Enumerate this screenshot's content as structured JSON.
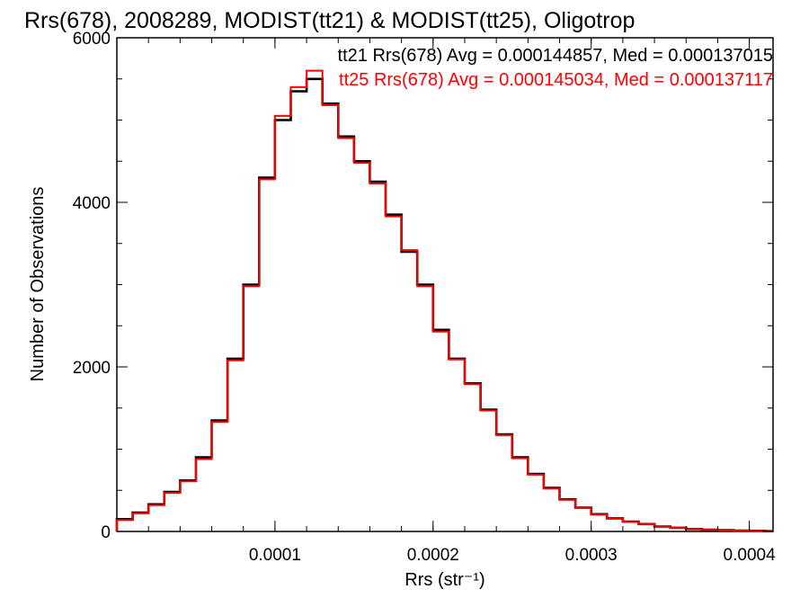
{
  "chart_data": {
    "type": "histogram-step",
    "title": "Rrs(678), 2008289, MODIST(tt21) & MODIST(tt25), Oligotrop",
    "xlabel": "Rrs (str⁻¹)",
    "ylabel": "Number of Observations",
    "xlim": [
      0.0,
      0.000415
    ],
    "ylim": [
      0,
      6000
    ],
    "x_ticks": [
      0.0001,
      0.0002,
      0.0003,
      0.0004
    ],
    "x_tick_labels": [
      "0.0001",
      "0.0002",
      "0.0003",
      "0.0004"
    ],
    "y_ticks": [
      0,
      2000,
      4000,
      6000
    ],
    "y_tick_labels": [
      "0",
      "2000",
      "4000",
      "6000"
    ],
    "grid": false,
    "legend_placement": "top-right",
    "x": [
      0.0,
      1e-05,
      2e-05,
      3e-05,
      4e-05,
      5e-05,
      6e-05,
      7e-05,
      8e-05,
      9e-05,
      0.0001,
      0.00011,
      0.00012,
      0.00013,
      0.00014,
      0.00015,
      0.00016,
      0.00017,
      0.00018,
      0.00019,
      0.0002,
      0.00021,
      0.00022,
      0.00023,
      0.00024,
      0.00025,
      0.00026,
      0.00027,
      0.00028,
      0.00029,
      0.0003,
      0.00031,
      0.00032,
      0.00033,
      0.00034,
      0.00035,
      0.00036,
      0.00037,
      0.00038,
      0.00039,
      0.0004,
      0.00041
    ],
    "series": [
      {
        "name": "tt21",
        "color": "#000000",
        "legend_text": "tt21 Rrs(678) Avg = 0.000144857, Med = 0.000137015",
        "values": [
          150,
          230,
          330,
          480,
          620,
          900,
          1350,
          2100,
          3000,
          4300,
          5000,
          5350,
          5500,
          5200,
          4800,
          4500,
          4250,
          3850,
          3400,
          3000,
          2450,
          2100,
          1800,
          1480,
          1180,
          900,
          700,
          530,
          390,
          290,
          210,
          160,
          120,
          90,
          60,
          45,
          30,
          22,
          15,
          10,
          8,
          5
        ]
      },
      {
        "name": "tt25",
        "color": "#ff0000",
        "legend_text": "tt25 Rrs(678) Avg = 0.000145034, Med = 0.000137117",
        "values": [
          140,
          220,
          320,
          470,
          610,
          880,
          1330,
          2080,
          2980,
          4280,
          5050,
          5400,
          5600,
          5180,
          4780,
          4480,
          4230,
          3830,
          3420,
          2980,
          2430,
          2090,
          1790,
          1470,
          1170,
          890,
          690,
          520,
          385,
          285,
          205,
          155,
          118,
          88,
          58,
          44,
          29,
          21,
          14,
          10,
          7,
          5
        ]
      }
    ]
  }
}
